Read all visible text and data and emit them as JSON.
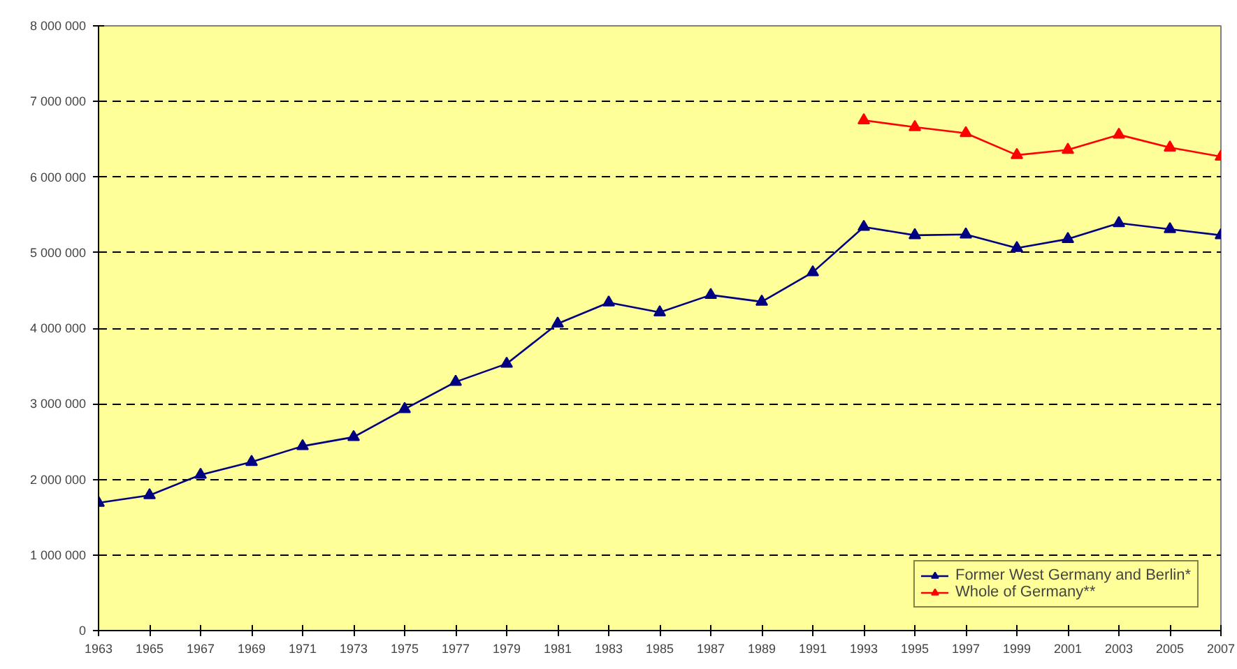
{
  "chart_data": {
    "type": "line",
    "x": [
      1963,
      1965,
      1967,
      1969,
      1971,
      1973,
      1975,
      1977,
      1979,
      1981,
      1983,
      1985,
      1987,
      1989,
      1991,
      1993,
      1995,
      1997,
      1999,
      2001,
      2003,
      2005,
      2007
    ],
    "series": [
      {
        "name": "Former West Germany and Berlin*",
        "color": "#000080",
        "values": [
          1690000,
          1790000,
          2060000,
          2230000,
          2440000,
          2560000,
          2930000,
          3290000,
          3530000,
          4060000,
          4340000,
          4210000,
          4440000,
          4350000,
          4740000,
          5340000,
          5230000,
          5240000,
          5060000,
          5180000,
          5390000,
          5310000,
          5230000
        ]
      },
      {
        "name": "Whole of Germany**",
        "color": "#ff0000",
        "values": [
          null,
          null,
          null,
          null,
          null,
          null,
          null,
          null,
          null,
          null,
          null,
          null,
          null,
          null,
          null,
          6750000,
          6660000,
          6580000,
          6290000,
          6360000,
          6560000,
          6390000,
          6270000
        ]
      }
    ],
    "xlim": [
      1963,
      2007
    ],
    "xticks": [
      1963,
      1965,
      1967,
      1969,
      1971,
      1973,
      1975,
      1977,
      1979,
      1981,
      1983,
      1985,
      1987,
      1989,
      1991,
      1993,
      1995,
      1997,
      1999,
      2001,
      2003,
      2005,
      2007
    ],
    "ylim": [
      0,
      8000000
    ],
    "yticks": [
      0,
      {
        "value": 1000000,
        "label": "1 000 000"
      },
      {
        "value": 2000000,
        "label": "2 000 000"
      },
      {
        "value": 3000000,
        "label": "3 000 000"
      },
      {
        "value": 4000000,
        "label": "4 000 000"
      },
      {
        "value": 5000000,
        "label": "5 000 000"
      },
      {
        "value": 6000000,
        "label": "6 000 000"
      },
      {
        "value": 7000000,
        "label": "7 000 000"
      },
      {
        "value": 8000000,
        "label": "8 000 000"
      }
    ],
    "grid": "y",
    "legend": "bottom right",
    "marker": "triangle",
    "line_style": "solid"
  }
}
